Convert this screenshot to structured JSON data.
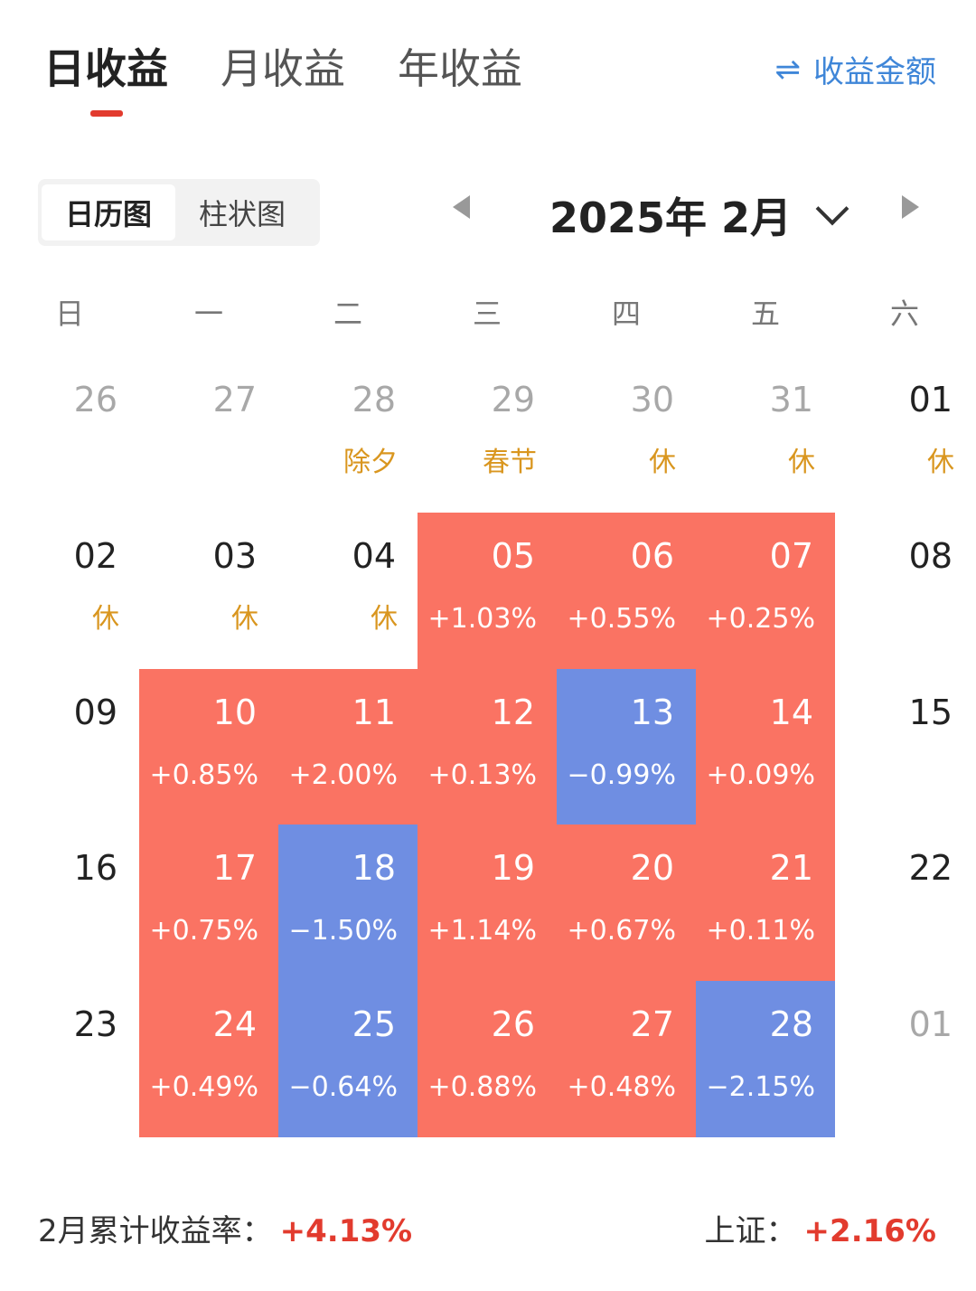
{
  "tabs": [
    "日收益",
    "月收益",
    "年收益"
  ],
  "mode_switch": {
    "icon": "swap-icon",
    "label": "收益金额"
  },
  "view_toggle": [
    "日历图",
    "柱状图"
  ],
  "month_title": "2025年 2月",
  "weekdays": [
    "日",
    "一",
    "二",
    "三",
    "四",
    "五",
    "六"
  ],
  "colors": {
    "accent_red": "#e23b2e",
    "link_blue": "#3f86d8",
    "gain": "#fa7363",
    "loss": "#6f8ee2",
    "holiday": "#d9961f"
  },
  "calendar": [
    [
      {
        "day": "26",
        "type": "muted"
      },
      {
        "day": "27",
        "type": "muted"
      },
      {
        "day": "28",
        "type": "muted",
        "note": "除夕"
      },
      {
        "day": "29",
        "type": "muted",
        "note": "春节"
      },
      {
        "day": "30",
        "type": "muted",
        "note": "休"
      },
      {
        "day": "31",
        "type": "muted",
        "note": "休"
      },
      {
        "day": "01",
        "type": "normal",
        "note": "休"
      }
    ],
    [
      {
        "day": "02",
        "type": "normal",
        "note": "休"
      },
      {
        "day": "03",
        "type": "normal",
        "note": "休"
      },
      {
        "day": "04",
        "type": "normal",
        "note": "休"
      },
      {
        "day": "05",
        "type": "gain",
        "value": "+1.03%"
      },
      {
        "day": "06",
        "type": "gain",
        "value": "+0.55%"
      },
      {
        "day": "07",
        "type": "gain",
        "value": "+0.25%"
      },
      {
        "day": "08",
        "type": "normal"
      }
    ],
    [
      {
        "day": "09",
        "type": "normal"
      },
      {
        "day": "10",
        "type": "gain",
        "value": "+0.85%"
      },
      {
        "day": "11",
        "type": "gain",
        "value": "+2.00%"
      },
      {
        "day": "12",
        "type": "gain",
        "value": "+0.13%"
      },
      {
        "day": "13",
        "type": "loss",
        "value": "−0.99%"
      },
      {
        "day": "14",
        "type": "gain",
        "value": "+0.09%"
      },
      {
        "day": "15",
        "type": "normal"
      }
    ],
    [
      {
        "day": "16",
        "type": "normal"
      },
      {
        "day": "17",
        "type": "gain",
        "value": "+0.75%"
      },
      {
        "day": "18",
        "type": "loss",
        "value": "−1.50%"
      },
      {
        "day": "19",
        "type": "gain",
        "value": "+1.14%"
      },
      {
        "day": "20",
        "type": "gain",
        "value": "+0.67%"
      },
      {
        "day": "21",
        "type": "gain",
        "value": "+0.11%"
      },
      {
        "day": "22",
        "type": "normal"
      }
    ],
    [
      {
        "day": "23",
        "type": "normal"
      },
      {
        "day": "24",
        "type": "gain",
        "value": "+0.49%"
      },
      {
        "day": "25",
        "type": "loss",
        "value": "−0.64%"
      },
      {
        "day": "26",
        "type": "gain",
        "value": "+0.88%"
      },
      {
        "day": "27",
        "type": "gain",
        "value": "+0.48%"
      },
      {
        "day": "28",
        "type": "loss",
        "value": "−2.15%"
      },
      {
        "day": "01",
        "type": "muted"
      }
    ]
  ],
  "footer": {
    "month_label": "2月累计收益率：",
    "month_value": "+4.13%",
    "index_label": "上证：",
    "index_value": "+2.16%"
  }
}
